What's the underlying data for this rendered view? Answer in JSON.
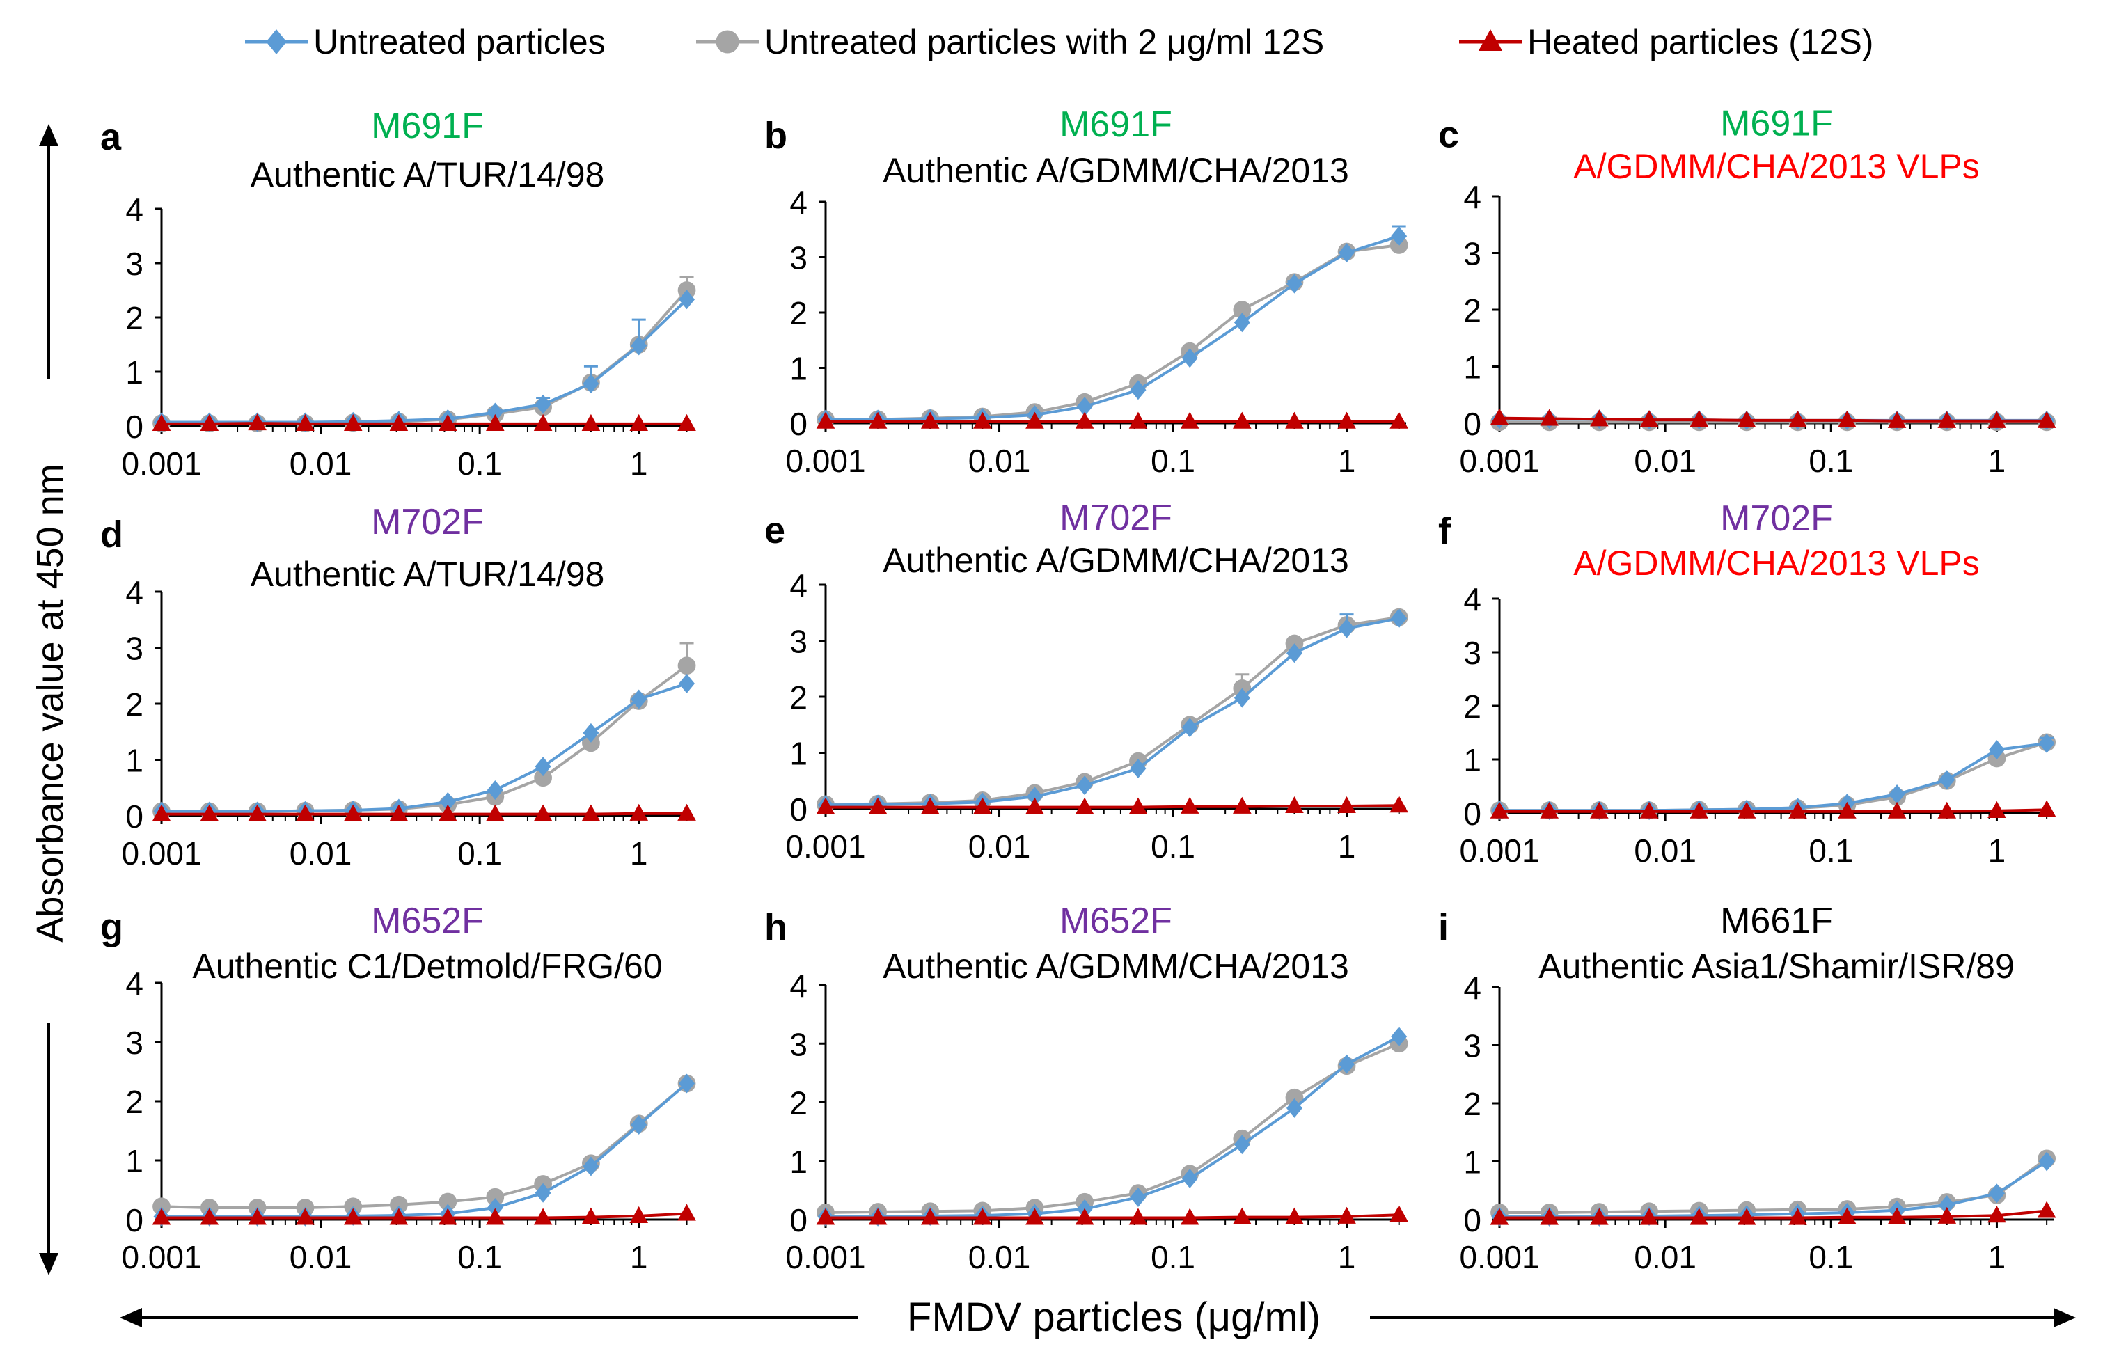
{
  "legend": {
    "items": [
      {
        "label": "Untreated particles",
        "color": "#5b9bd5",
        "marker": "diamond"
      },
      {
        "label": "Untreated particles with 2 μg/ml 12S",
        "color": "#a5a5a5",
        "marker": "circle"
      },
      {
        "label": "Heated particles (12S)",
        "color": "#c00000",
        "marker": "triangle"
      }
    ]
  },
  "axes": {
    "ylabel": "Absorbance value at 450 nm",
    "xlabel": "FMDV particles (μg/ml)",
    "x_ticks": [
      "0.001",
      "0.01",
      "0.1",
      "1"
    ],
    "y_ticks": [
      "0",
      "1",
      "2",
      "3",
      "4"
    ]
  },
  "chart_data": [
    {
      "type": "line",
      "letter": "a",
      "antibody": "M691F",
      "antibody_color": "#00b050",
      "subtitle": "Authentic  A/TUR/14/98",
      "subtitle_color": "#000000",
      "x": [
        0.001,
        0.002,
        0.004,
        0.008,
        0.016,
        0.031,
        0.063,
        0.125,
        0.25,
        0.5,
        1,
        2
      ],
      "xlim": [
        0.001,
        2.2
      ],
      "ylim": [
        0,
        4
      ],
      "series": [
        {
          "name": "Untreated particles",
          "values": [
            0.07,
            0.07,
            0.07,
            0.07,
            0.08,
            0.1,
            0.13,
            0.25,
            0.4,
            0.78,
            1.48,
            2.33
          ],
          "err": [
            0,
            0,
            0,
            0,
            0,
            0,
            0,
            0.05,
            0.12,
            0.32,
            0.48,
            0
          ]
        },
        {
          "name": "Untreated particles with 2 μg/ml 12S",
          "values": [
            0.05,
            0.05,
            0.05,
            0.05,
            0.06,
            0.08,
            0.12,
            0.22,
            0.35,
            0.8,
            1.5,
            2.5
          ],
          "err": [
            0,
            0,
            0,
            0,
            0,
            0,
            0,
            0,
            0,
            0,
            0,
            0.25
          ]
        },
        {
          "name": "Heated particles (12S)",
          "values": [
            0.04,
            0.04,
            0.05,
            0.04,
            0.04,
            0.04,
            0.04,
            0.04,
            0.04,
            0.04,
            0.04,
            0.04
          ],
          "err": [
            0,
            0,
            0,
            0,
            0,
            0,
            0,
            0,
            0,
            0,
            0,
            0
          ]
        }
      ]
    },
    {
      "type": "line",
      "letter": "b",
      "antibody": "M691F",
      "antibody_color": "#00b050",
      "subtitle": "Authentic  A/GDMM/CHA/2013",
      "subtitle_color": "#000000",
      "x": [
        0.001,
        0.002,
        0.004,
        0.008,
        0.016,
        0.031,
        0.063,
        0.125,
        0.25,
        0.5,
        1,
        2
      ],
      "xlim": [
        0.001,
        2.2
      ],
      "ylim": [
        0,
        4
      ],
      "series": [
        {
          "name": "Untreated particles",
          "values": [
            0.07,
            0.07,
            0.08,
            0.1,
            0.15,
            0.3,
            0.6,
            1.18,
            1.82,
            2.52,
            3.08,
            3.38
          ],
          "err": [
            0,
            0,
            0,
            0,
            0,
            0,
            0,
            0,
            0,
            0.05,
            0,
            0.18
          ]
        },
        {
          "name": "Untreated particles with 2 μg/ml 12S",
          "values": [
            0.07,
            0.07,
            0.09,
            0.12,
            0.2,
            0.38,
            0.72,
            1.3,
            2.05,
            2.55,
            3.1,
            3.22
          ],
          "err": [
            0,
            0,
            0,
            0,
            0,
            0,
            0,
            0,
            0,
            0,
            0,
            0
          ]
        },
        {
          "name": "Heated particles (12S)",
          "values": [
            0.03,
            0.03,
            0.03,
            0.03,
            0.03,
            0.03,
            0.03,
            0.03,
            0.03,
            0.03,
            0.03,
            0.03
          ],
          "err": [
            0,
            0,
            0,
            0,
            0,
            0,
            0,
            0,
            0,
            0,
            0,
            0
          ]
        }
      ]
    },
    {
      "type": "line",
      "letter": "c",
      "antibody": "M691F",
      "antibody_color": "#00b050",
      "subtitle": "A/GDMM/CHA/2013  VLPs",
      "subtitle_color": "#ff0000",
      "x": [
        0.001,
        0.002,
        0.004,
        0.008,
        0.016,
        0.031,
        0.063,
        0.125,
        0.25,
        0.5,
        1,
        2
      ],
      "xlim": [
        0.001,
        2.2
      ],
      "ylim": [
        0,
        4
      ],
      "series": [
        {
          "name": "Untreated particles",
          "values": [
            0.07,
            0.07,
            0.07,
            0.06,
            0.06,
            0.05,
            0.05,
            0.05,
            0.05,
            0.05,
            0.05,
            0.05
          ],
          "err": [
            0,
            0,
            0,
            0,
            0,
            0,
            0,
            0,
            0,
            0,
            0,
            0
          ]
        },
        {
          "name": "Untreated particles with 2 μg/ml 12S",
          "values": [
            0.02,
            0.02,
            0.02,
            0.02,
            0.02,
            0.02,
            0.02,
            0.02,
            0.02,
            0.02,
            0.02,
            0.02
          ],
          "err": [
            0,
            0,
            0,
            0,
            0,
            0,
            0,
            0,
            0,
            0,
            0,
            0
          ]
        },
        {
          "name": "Heated particles (12S)",
          "values": [
            0.09,
            0.08,
            0.07,
            0.06,
            0.06,
            0.05,
            0.05,
            0.05,
            0.04,
            0.04,
            0.04,
            0.04
          ],
          "err": [
            0,
            0,
            0,
            0,
            0,
            0,
            0,
            0,
            0,
            0,
            0,
            0
          ]
        }
      ]
    },
    {
      "type": "line",
      "letter": "d",
      "antibody": "M702F",
      "antibody_color": "#7030a0",
      "subtitle": "Authentic  A/TUR/14/98",
      "subtitle_color": "#000000",
      "x": [
        0.001,
        0.002,
        0.004,
        0.008,
        0.016,
        0.031,
        0.063,
        0.125,
        0.25,
        0.5,
        1,
        2
      ],
      "xlim": [
        0.001,
        2.2
      ],
      "ylim": [
        0,
        4
      ],
      "series": [
        {
          "name": "Untreated particles",
          "values": [
            0.08,
            0.08,
            0.08,
            0.09,
            0.1,
            0.13,
            0.25,
            0.46,
            0.88,
            1.48,
            2.08,
            2.36
          ],
          "err": [
            0,
            0,
            0,
            0,
            0,
            0,
            0,
            0,
            0,
            0,
            0,
            0
          ]
        },
        {
          "name": "Untreated particles with 2 μg/ml 12S",
          "values": [
            0.08,
            0.08,
            0.08,
            0.09,
            0.1,
            0.12,
            0.2,
            0.34,
            0.68,
            1.3,
            2.05,
            2.68
          ],
          "err": [
            0,
            0,
            0,
            0,
            0,
            0,
            0,
            0,
            0,
            0,
            0,
            0.4
          ]
        },
        {
          "name": "Heated particles (12S)",
          "values": [
            0.03,
            0.03,
            0.03,
            0.03,
            0.03,
            0.03,
            0.03,
            0.03,
            0.03,
            0.03,
            0.04,
            0.04
          ],
          "err": [
            0,
            0,
            0,
            0,
            0,
            0,
            0,
            0,
            0,
            0,
            0,
            0
          ]
        }
      ]
    },
    {
      "type": "line",
      "letter": "e",
      "antibody": "M702F",
      "antibody_color": "#7030a0",
      "subtitle": "Authentic  A/GDMM/CHA/2013",
      "subtitle_color": "#000000",
      "x": [
        0.001,
        0.002,
        0.004,
        0.008,
        0.016,
        0.031,
        0.063,
        0.125,
        0.25,
        0.5,
        1,
        2
      ],
      "xlim": [
        0.001,
        2.2
      ],
      "ylim": [
        0,
        4
      ],
      "series": [
        {
          "name": "Untreated particles",
          "values": [
            0.07,
            0.08,
            0.09,
            0.12,
            0.22,
            0.42,
            0.72,
            1.45,
            1.98,
            2.78,
            3.22,
            3.4
          ],
          "err": [
            0,
            0,
            0,
            0,
            0,
            0,
            0,
            0,
            0,
            0,
            0.25,
            0
          ]
        },
        {
          "name": "Untreated particles with 2 μg/ml 12S",
          "values": [
            0.08,
            0.09,
            0.11,
            0.15,
            0.28,
            0.48,
            0.85,
            1.5,
            2.15,
            2.95,
            3.28,
            3.42
          ],
          "err": [
            0,
            0,
            0,
            0,
            0,
            0,
            0,
            0,
            0.25,
            0,
            0,
            0
          ]
        },
        {
          "name": "Heated particles (12S)",
          "values": [
            0.03,
            0.03,
            0.03,
            0.03,
            0.03,
            0.03,
            0.03,
            0.04,
            0.04,
            0.05,
            0.05,
            0.06
          ],
          "err": [
            0,
            0,
            0,
            0,
            0,
            0,
            0,
            0,
            0,
            0,
            0,
            0
          ]
        }
      ]
    },
    {
      "type": "line",
      "letter": "f",
      "antibody": "M702F",
      "antibody_color": "#7030a0",
      "subtitle": "A/GDMM/CHA/2013  VLPs",
      "subtitle_color": "#ff0000",
      "x": [
        0.001,
        0.002,
        0.004,
        0.008,
        0.016,
        0.031,
        0.063,
        0.125,
        0.25,
        0.5,
        1,
        2
      ],
      "xlim": [
        0.001,
        2.2
      ],
      "ylim": [
        0,
        4
      ],
      "series": [
        {
          "name": "Untreated particles",
          "values": [
            0.05,
            0.05,
            0.05,
            0.05,
            0.06,
            0.07,
            0.1,
            0.18,
            0.35,
            0.62,
            1.18,
            1.3
          ],
          "err": [
            0,
            0,
            0,
            0,
            0,
            0,
            0,
            0,
            0,
            0,
            0,
            0.1
          ]
        },
        {
          "name": "Untreated particles with 2 μg/ml 12S",
          "values": [
            0.05,
            0.05,
            0.05,
            0.05,
            0.06,
            0.07,
            0.09,
            0.15,
            0.3,
            0.6,
            1.02,
            1.32
          ],
          "err": [
            0,
            0,
            0,
            0,
            0,
            0,
            0,
            0,
            0,
            0,
            0,
            0
          ]
        },
        {
          "name": "Heated particles (12S)",
          "values": [
            0.03,
            0.03,
            0.03,
            0.03,
            0.03,
            0.03,
            0.03,
            0.03,
            0.03,
            0.03,
            0.04,
            0.06
          ],
          "err": [
            0,
            0,
            0,
            0,
            0,
            0,
            0,
            0,
            0,
            0,
            0,
            0
          ]
        }
      ]
    },
    {
      "type": "line",
      "letter": "g",
      "antibody": "M652F",
      "antibody_color": "#7030a0",
      "subtitle": "Authentic  C1/Detmold/FRG/60",
      "subtitle_color": "#000000",
      "x": [
        0.001,
        0.002,
        0.004,
        0.008,
        0.016,
        0.031,
        0.063,
        0.125,
        0.25,
        0.5,
        1,
        2
      ],
      "xlim": [
        0.001,
        2.2
      ],
      "ylim": [
        0,
        4
      ],
      "series": [
        {
          "name": "Untreated particles",
          "values": [
            0.05,
            0.05,
            0.05,
            0.05,
            0.06,
            0.07,
            0.1,
            0.2,
            0.45,
            0.9,
            1.6,
            2.3
          ],
          "err": [
            0,
            0,
            0,
            0,
            0,
            0,
            0,
            0,
            0,
            0,
            0,
            0
          ]
        },
        {
          "name": "Untreated particles with 2 μg/ml 12S",
          "values": [
            0.22,
            0.2,
            0.2,
            0.2,
            0.22,
            0.25,
            0.3,
            0.38,
            0.6,
            0.95,
            1.62,
            2.3
          ],
          "err": [
            0,
            0,
            0,
            0,
            0,
            0,
            0,
            0,
            0,
            0,
            0,
            0
          ]
        },
        {
          "name": "Heated particles (12S)",
          "values": [
            0.03,
            0.03,
            0.03,
            0.03,
            0.03,
            0.03,
            0.03,
            0.03,
            0.03,
            0.04,
            0.06,
            0.1
          ],
          "err": [
            0,
            0,
            0,
            0,
            0,
            0,
            0,
            0,
            0,
            0,
            0,
            0
          ]
        }
      ]
    },
    {
      "type": "line",
      "letter": "h",
      "antibody": "M652F",
      "antibody_color": "#7030a0",
      "subtitle": "Authentic  A/GDMM/CHA/2013",
      "subtitle_color": "#000000",
      "x": [
        0.001,
        0.002,
        0.004,
        0.008,
        0.016,
        0.031,
        0.063,
        0.125,
        0.25,
        0.5,
        1,
        2
      ],
      "xlim": [
        0.001,
        2.2
      ],
      "ylim": [
        0,
        4
      ],
      "series": [
        {
          "name": "Untreated particles",
          "values": [
            0.05,
            0.05,
            0.06,
            0.07,
            0.1,
            0.18,
            0.38,
            0.7,
            1.28,
            1.9,
            2.65,
            3.12
          ],
          "err": [
            0,
            0,
            0,
            0,
            0,
            0,
            0,
            0,
            0,
            0,
            0,
            0
          ]
        },
        {
          "name": "Untreated particles with 2 μg/ml 12S",
          "values": [
            0.12,
            0.13,
            0.14,
            0.15,
            0.2,
            0.3,
            0.45,
            0.78,
            1.38,
            2.08,
            2.62,
            3.0
          ],
          "err": [
            0,
            0,
            0,
            0,
            0,
            0,
            0,
            0,
            0,
            0,
            0,
            0
          ]
        },
        {
          "name": "Heated particles (12S)",
          "values": [
            0.03,
            0.03,
            0.03,
            0.03,
            0.03,
            0.03,
            0.03,
            0.03,
            0.04,
            0.04,
            0.05,
            0.08
          ],
          "err": [
            0,
            0,
            0,
            0,
            0,
            0,
            0,
            0,
            0,
            0,
            0,
            0
          ]
        }
      ]
    },
    {
      "type": "line",
      "letter": "i",
      "antibody": "M661F",
      "antibody_color": "#000000",
      "subtitle": "Authentic  Asia1/Shamir/ISR/89",
      "subtitle_color": "#000000",
      "x": [
        0.001,
        0.002,
        0.004,
        0.008,
        0.016,
        0.031,
        0.063,
        0.125,
        0.25,
        0.5,
        1,
        2
      ],
      "xlim": [
        0.001,
        2.2
      ],
      "ylim": [
        0,
        4
      ],
      "series": [
        {
          "name": "Untreated particles",
          "values": [
            0.05,
            0.05,
            0.05,
            0.06,
            0.07,
            0.08,
            0.1,
            0.12,
            0.16,
            0.25,
            0.45,
            1.0
          ],
          "err": [
            0,
            0,
            0,
            0,
            0,
            0,
            0,
            0,
            0,
            0,
            0,
            0
          ]
        },
        {
          "name": "Untreated particles with 2 μg/ml 12S",
          "values": [
            0.12,
            0.12,
            0.13,
            0.14,
            0.15,
            0.16,
            0.17,
            0.18,
            0.22,
            0.3,
            0.42,
            1.05
          ],
          "err": [
            0,
            0,
            0,
            0,
            0,
            0,
            0,
            0,
            0,
            0,
            0,
            0
          ]
        },
        {
          "name": "Heated particles (12S)",
          "values": [
            0.03,
            0.03,
            0.03,
            0.03,
            0.03,
            0.03,
            0.03,
            0.04,
            0.04,
            0.05,
            0.07,
            0.15
          ],
          "err": [
            0,
            0,
            0,
            0,
            0,
            0,
            0,
            0,
            0,
            0,
            0,
            0
          ]
        }
      ]
    }
  ]
}
